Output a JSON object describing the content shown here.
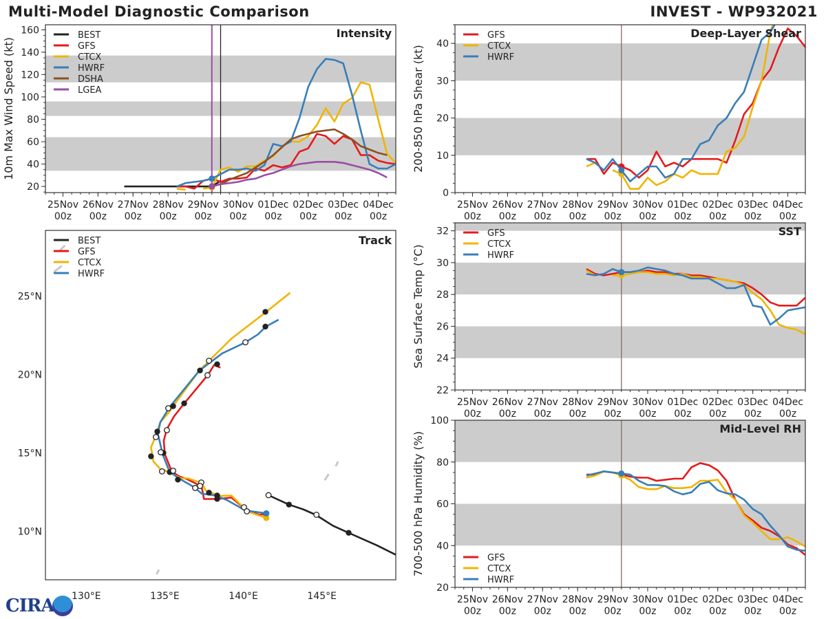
{
  "header": {
    "title_left": "Multi-Model Diagnostic Comparison",
    "title_right": "INVEST - WP932021"
  },
  "logo": {
    "text": "CIRA"
  },
  "colors": {
    "BEST": "#222222",
    "GFS": "#e41a1c",
    "CTCX": "#f0b400",
    "HWRF": "#377eb8",
    "DSHA": "#8c4f23",
    "LGEA": "#984ea3",
    "band": "#cccccc"
  },
  "time_axis": {
    "xlim": [
      "24Nov 12z",
      "04Dec 12z"
    ],
    "ticks": [
      {
        "date": "25Nov",
        "hour": "00z"
      },
      {
        "date": "26Nov",
        "hour": "00z"
      },
      {
        "date": "27Nov",
        "hour": "00z"
      },
      {
        "date": "28Nov",
        "hour": "00z"
      },
      {
        "date": "29Nov",
        "hour": "00z"
      },
      {
        "date": "30Nov",
        "hour": "00z"
      },
      {
        "date": "01Dec",
        "hour": "00z"
      },
      {
        "date": "02Dec",
        "hour": "00z"
      },
      {
        "date": "03Dec",
        "hour": "00z"
      },
      {
        "date": "04Dec",
        "hour": "00z"
      }
    ]
  },
  "chart_data": [
    {
      "panel": "intensity",
      "type": "line",
      "title": "Intensity",
      "ylabel": "10m Max Wind Speed (kt)",
      "ylim": [
        14.5,
        164.5
      ],
      "yticks": [
        20,
        40,
        60,
        80,
        100,
        120,
        140,
        160
      ],
      "legend": "top-left",
      "bands": [
        [
          34,
          64
        ],
        [
          83,
          96
        ],
        [
          113,
          137
        ]
      ],
      "vlines": [
        {
          "time": "29Nov 06z",
          "color": "#984ea3"
        },
        {
          "time": "29Nov 12z",
          "color": "#222222"
        }
      ],
      "series": [
        {
          "name": "BEST",
          "start": "26Nov 18z",
          "step_hours": 6,
          "values": [
            20,
            20,
            20,
            20,
            20,
            20,
            20,
            20,
            20,
            20,
            20,
            25
          ]
        },
        {
          "name": "GFS",
          "start": "28Nov 06z",
          "step_hours": 6,
          "values": [
            20,
            20,
            18,
            25,
            27,
            24,
            27,
            27,
            28,
            36,
            34,
            39,
            37,
            39,
            51,
            54,
            67,
            65,
            58,
            65,
            62,
            48,
            48,
            43,
            41,
            40
          ]
        },
        {
          "name": "CTCX",
          "start": "28Nov 06z",
          "step_hours": 6,
          "values": [
            18,
            17,
            null,
            18,
            19,
            35,
            37,
            33,
            38,
            38,
            43,
            47,
            56,
            60,
            60,
            65,
            75,
            90,
            78,
            94,
            99,
            113,
            111,
            80,
            49,
            41
          ]
        },
        {
          "name": "HWRF",
          "start": "28Nov 06z",
          "step_hours": 6,
          "values": [
            20,
            23,
            24,
            25,
            27,
            31,
            35,
            35,
            36,
            34,
            39,
            58,
            56,
            60,
            81,
            109,
            125,
            134,
            133,
            130,
            102,
            70,
            40,
            36,
            36,
            40
          ]
        },
        {
          "name": "DSHA",
          "start": "29Nov 06z",
          "step_hours": 6,
          "values": [
            20,
            22,
            26,
            29,
            32,
            37,
            42,
            48,
            55,
            62,
            65,
            67,
            69,
            70,
            71,
            67,
            62,
            56,
            53,
            50,
            48
          ]
        },
        {
          "name": "LGEA",
          "start": "29Nov 06z",
          "step_hours": 6,
          "values": [
            20,
            22,
            23,
            24,
            26,
            27,
            30,
            32,
            35,
            38,
            40,
            41,
            42,
            42,
            42,
            41,
            39,
            37,
            35,
            32,
            28
          ]
        }
      ]
    },
    {
      "panel": "shear",
      "type": "line",
      "title": "Deep-Layer Shear",
      "ylabel": "200-850 hPa Shear (kt)",
      "ylim": [
        0,
        45
      ],
      "yticks": [
        0,
        10,
        20,
        30,
        40
      ],
      "legend": "top-left",
      "bands": [
        [
          10,
          20
        ],
        [
          30,
          40
        ]
      ],
      "vlines": [
        {
          "time": "29Nov 06z",
          "color": "#8c6d5a"
        }
      ],
      "series": [
        {
          "name": "GFS",
          "start": "28Nov 06z",
          "step_hours": 6,
          "values": [
            9,
            9,
            5,
            8,
            7,
            6,
            4,
            6,
            11,
            7,
            8,
            7,
            9,
            9,
            9,
            9,
            8,
            14,
            21,
            24,
            30,
            33,
            39,
            44,
            42,
            39,
            34
          ]
        },
        {
          "name": "CTCX",
          "start": "28Nov 06z",
          "step_hours": 6,
          "values": [
            7,
            8,
            null,
            6,
            5,
            1,
            1,
            4,
            2,
            3,
            5,
            4,
            6,
            5,
            5,
            5,
            11,
            12,
            15,
            23,
            30,
            43,
            50
          ]
        },
        {
          "name": "HWRF",
          "start": "28Nov 06z",
          "step_hours": 6,
          "values": [
            9,
            8,
            6,
            9,
            6,
            3,
            5,
            7,
            7,
            4,
            5,
            9,
            9,
            13,
            14,
            18,
            20,
            24,
            27,
            34,
            41,
            43,
            47
          ]
        }
      ]
    },
    {
      "panel": "sst",
      "type": "line",
      "title": "SST",
      "ylabel": "Sea Surface Temp (°C)",
      "ylim": [
        22,
        32.5
      ],
      "yticks": [
        22,
        24,
        26,
        28,
        30,
        32
      ],
      "legend": "top-left",
      "bands": [
        [
          24,
          26
        ],
        [
          28,
          30
        ],
        [
          32,
          32.5
        ]
      ],
      "vlines": [
        {
          "time": "29Nov 06z",
          "color": "#8c6d5a"
        }
      ],
      "series": [
        {
          "name": "GFS",
          "start": "28Nov 06z",
          "step_hours": 6,
          "values": [
            29.6,
            29.3,
            29.2,
            29.3,
            29.4,
            29.4,
            29.4,
            29.5,
            29.4,
            29.4,
            29.3,
            29.3,
            29.2,
            29.2,
            29.1,
            29.0,
            28.9,
            28.8,
            28.7,
            28.4,
            28.0,
            27.5,
            27.3,
            27.3,
            27.3,
            27.8
          ]
        },
        {
          "name": "CTCX",
          "start": "28Nov 06z",
          "step_hours": 6,
          "values": [
            29.5,
            29.2,
            null,
            29.2,
            29.2,
            29.3,
            29.4,
            29.4,
            29.3,
            29.3,
            29.2,
            29.3,
            29.1,
            29.1,
            29.0,
            29.0,
            28.9,
            28.8,
            28.6,
            28.1,
            27.7,
            27.0,
            26.1,
            25.9,
            25.8,
            25.5
          ]
        },
        {
          "name": "HWRF",
          "start": "28Nov 06z",
          "step_hours": 6,
          "values": [
            29.3,
            29.2,
            29.3,
            29.6,
            29.4,
            29.4,
            29.5,
            29.7,
            29.6,
            29.5,
            29.3,
            29.2,
            29.0,
            29.0,
            29.0,
            28.7,
            28.4,
            28.4,
            28.6,
            27.3,
            27.2,
            26.1,
            26.5,
            27.0,
            27.1,
            27.2
          ]
        }
      ]
    },
    {
      "panel": "rh",
      "type": "line",
      "title": "Mid-Level RH",
      "ylabel": "700-500 hPa Humidity (%)",
      "ylim": [
        20,
        100
      ],
      "yticks": [
        20,
        40,
        60,
        80,
        100
      ],
      "legend": "bottom-left",
      "bands": [
        [
          40,
          60
        ],
        [
          80,
          100
        ]
      ],
      "vlines": [
        {
          "time": "29Nov 06z",
          "color": "#8c6d5a"
        }
      ],
      "series": [
        {
          "name": "GFS",
          "start": "28Nov 06z",
          "step_hours": 6,
          "values": [
            74,
            74,
            75.5,
            75,
            74,
            73,
            72.5,
            72.5,
            71,
            71.5,
            72,
            72,
            77.5,
            79.5,
            78.5,
            76,
            71,
            62,
            55,
            52,
            48.5,
            47,
            44.5,
            40.5,
            38.8,
            35.5
          ]
        },
        {
          "name": "CTCX",
          "start": "28Nov 06z",
          "step_hours": 6,
          "values": [
            72.5,
            73.5,
            75.5,
            75,
            73.5,
            71.5,
            68,
            67,
            67,
            68.5,
            67.5,
            67.5,
            68,
            71,
            71,
            71.5,
            65.5,
            62,
            54.5,
            51,
            47,
            43,
            43,
            44,
            42,
            39.5
          ]
        },
        {
          "name": "HWRF",
          "start": "28Nov 06z",
          "step_hours": 6,
          "values": [
            73.5,
            74.5,
            75.5,
            75,
            74.5,
            74,
            71,
            69,
            69,
            68.5,
            66,
            64.5,
            65.5,
            69.5,
            70.5,
            66.5,
            65,
            64.5,
            62,
            57.5,
            55,
            49.5,
            45,
            39.5,
            38,
            37.5
          ]
        }
      ]
    },
    {
      "panel": "track",
      "type": "map-track",
      "title": "Track",
      "legend": "top-left",
      "lon_range": [
        127.4,
        149.7
      ],
      "lat_range": [
        6.9,
        29.2
      ],
      "lon_ticks": [
        {
          "value": 130,
          "label": "130°E"
        },
        {
          "value": 135,
          "label": "135°E"
        },
        {
          "value": 140,
          "label": "140°E"
        },
        {
          "value": 145,
          "label": "145°E"
        }
      ],
      "lat_ticks": [
        {
          "value": 10,
          "label": "10°N"
        },
        {
          "value": 15,
          "label": "15°N"
        },
        {
          "value": 20,
          "label": "20°N"
        },
        {
          "value": 25,
          "label": "25°N"
        }
      ],
      "legend_names": [
        "BEST",
        "GFS",
        "CTCX",
        "HWRF"
      ],
      "tracks": [
        {
          "name": "BEST",
          "points": [
            [
              141.6,
              12.3
            ],
            [
              142.9,
              11.7
            ],
            [
              143.8,
              11.4
            ],
            [
              144.6,
              11.05
            ],
            [
              145.7,
              10.35
            ],
            [
              146.7,
              9.9
            ],
            [
              148.5,
              9.1
            ],
            [
              149.7,
              8.5
            ]
          ]
        },
        {
          "name": "GFS",
          "points": [
            [
              141.43,
              11.11
            ],
            [
              141.0,
              11.05
            ],
            [
              140.12,
              11.4
            ],
            [
              139.24,
              12.15
            ],
            [
              138.36,
              12.06
            ],
            [
              137.49,
              12.06
            ],
            [
              137.34,
              12.86
            ],
            [
              136.46,
              13.3
            ],
            [
              135.88,
              13.52
            ],
            [
              135.44,
              13.82
            ],
            [
              135.0,
              14.91
            ],
            [
              134.93,
              15.79
            ],
            [
              135.14,
              16.54
            ],
            [
              135.58,
              17.32
            ],
            [
              136.24,
              18.17
            ],
            [
              137.73,
              19.96
            ],
            [
              138.14,
              20.61
            ],
            [
              138.54,
              20.44
            ]
          ]
        },
        {
          "name": "CTCX",
          "points": [
            [
              141.46,
              10.85
            ],
            [
              140.26,
              11.26
            ],
            [
              139.24,
              12.28
            ],
            [
              138.51,
              12.25
            ],
            [
              137.63,
              12.57
            ],
            [
              137.34,
              13.08
            ],
            [
              136.46,
              13.38
            ],
            [
              136.02,
              13.38
            ],
            [
              135.58,
              13.6
            ],
            [
              135.0,
              13.89
            ],
            [
              134.71,
              13.96
            ],
            [
              134.27,
              14.47
            ],
            [
              134.12,
              15.35
            ],
            [
              134.42,
              16.08
            ],
            [
              134.71,
              16.96
            ],
            [
              135.22,
              17.54
            ],
            [
              135.58,
              18.06
            ],
            [
              137.19,
              20.25
            ],
            [
              137.85,
              20.91
            ],
            [
              139.24,
              22.29
            ],
            [
              141.43,
              23.98
            ],
            [
              142.97,
              25.22
            ]
          ]
        },
        {
          "name": "HWRF",
          "points": [
            [
              141.46,
              11.14
            ],
            [
              140.12,
              11.33
            ],
            [
              138.95,
              11.99
            ],
            [
              138.21,
              12.28
            ],
            [
              137.34,
              12.4
            ],
            [
              136.9,
              12.79
            ],
            [
              135.88,
              13.38
            ],
            [
              135.29,
              13.82
            ],
            [
              134.86,
              14.91
            ],
            [
              134.56,
              16.23
            ],
            [
              134.71,
              16.96
            ],
            [
              135.07,
              17.54
            ],
            [
              135.29,
              17.91
            ],
            [
              137.19,
              20.25
            ],
            [
              138.65,
              21.35
            ],
            [
              140.12,
              22.05
            ],
            [
              140.92,
              22.56
            ],
            [
              141.43,
              23.06
            ],
            [
              142.24,
              23.5
            ]
          ]
        }
      ],
      "markers_00z": [
        [
          141.4,
          24.0
        ],
        [
          141.4,
          23.06
        ],
        [
          138.33,
          20.66
        ],
        [
          137.24,
          20.26
        ],
        [
          136.23,
          18.16
        ],
        [
          135.53,
          17.98
        ],
        [
          134.52,
          16.36
        ],
        [
          134.12,
          14.78
        ],
        [
          134.91,
          15.0
        ],
        [
          135.31,
          13.77
        ],
        [
          135.83,
          13.29
        ],
        [
          137.81,
          12.46
        ],
        [
          138.33,
          12.28
        ],
        [
          138.33,
          12.06
        ],
        [
          142.9,
          11.7
        ],
        [
          146.7,
          9.9
        ]
      ],
      "markers_12z": [
        [
          137.81,
          20.88
        ],
        [
          137.72,
          19.96
        ],
        [
          140.13,
          22.06
        ],
        [
          135.22,
          17.85
        ],
        [
          135.13,
          16.45
        ],
        [
          134.43,
          16.01
        ],
        [
          134.74,
          15.04
        ],
        [
          134.82,
          13.82
        ],
        [
          135.53,
          13.86
        ],
        [
          137.32,
          13.11
        ],
        [
          137.24,
          12.89
        ],
        [
          136.93,
          12.76
        ],
        [
          140.04,
          11.53
        ],
        [
          140.22,
          11.27
        ],
        [
          141.6,
          12.3
        ],
        [
          144.65,
          11.05
        ]
      ]
    }
  ]
}
